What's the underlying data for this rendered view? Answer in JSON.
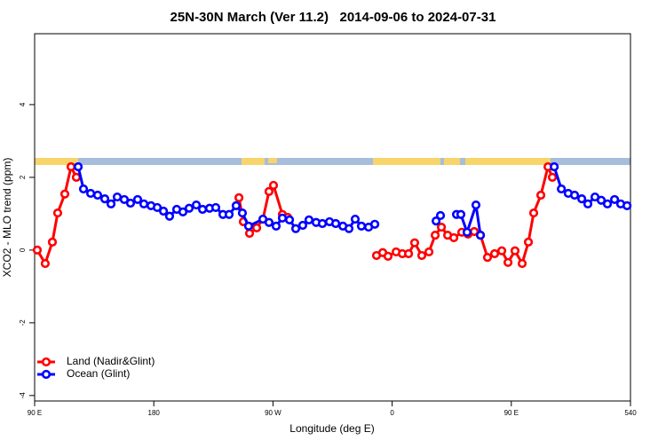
{
  "chart_data": {
    "type": "line",
    "title": "25N-30N March (Ver 11.2)   2014-09-06 to 2024-07-31",
    "xlabel": "Longitude (deg E)",
    "ylabel": "XCO2 - MLO trend (ppm)",
    "xlim": [
      90,
      540
    ],
    "xticks": [
      {
        "value": 90,
        "label": "90 E"
      },
      180,
      {
        "value": 270,
        "label": "90 W"
      },
      {
        "value": 360,
        "label": "0"
      },
      {
        "value": 450,
        "label": "90 E"
      },
      540
    ],
    "ylim": [
      -4.15,
      5.95
    ],
    "yticks": [
      -4,
      -2,
      0,
      2,
      4
    ],
    "legend": "bottom-left",
    "series": [
      {
        "name": "Land (Nadir&Glint)",
        "color": "#ff0000",
        "x": [
          92,
          98,
          103.4,
          107.4,
          112.8,
          117.5,
          121.5,
          null,
          244.3,
          247.6,
          252.3,
          257.7,
          262.4,
          267,
          270.4,
          277.1,
          281.1,
          null,
          348.2,
          352.9,
          356.9,
          363,
          367.7,
          372.4,
          377,
          382.4,
          387.8,
          392.5,
          397.2,
          401.9,
          406.6,
          412.6,
          417.3,
          422,
          426.7,
          432,
          437.4,
          442.8,
          447.5,
          452.8,
          458.2,
          462.9,
          466.9,
          472.3,
          477.7,
          481
        ],
        "values": [
          0,
          -0.37,
          0.22,
          1.02,
          1.54,
          2.29,
          2.0,
          null,
          1.44,
          0.78,
          0.46,
          0.61,
          0.85,
          1.61,
          1.78,
          0.98,
          0.9,
          null,
          -0.15,
          -0.07,
          -0.17,
          -0.05,
          -0.1,
          -0.1,
          0.2,
          -0.15,
          -0.05,
          0.41,
          0.63,
          0.41,
          0.34,
          0.49,
          0.44,
          0.51,
          0.41,
          -0.2,
          -0.1,
          -0.02,
          -0.34,
          -0.02,
          -0.37,
          0.22,
          1.02,
          1.51,
          2.29,
          2.0
        ]
      },
      {
        "name": "Ocean (Glint)",
        "color": "#0000ff",
        "x": [
          122.9,
          126.9,
          132.3,
          137.6,
          143,
          147.7,
          152.4,
          157.7,
          162.4,
          167.8,
          172.5,
          177.9,
          182.6,
          187.3,
          191.9,
          197.3,
          202,
          206.7,
          212.1,
          216.8,
          222.1,
          226.8,
          232.2,
          236.9,
          242.2,
          246.9,
          251.6,
          262.4,
          267,
          272.4,
          277.1,
          282.5,
          287.2,
          292.5,
          297.2,
          302.6,
          307.3,
          312.7,
          317.4,
          322.8,
          327.4,
          332.1,
          336.8,
          342.2,
          346.9,
          null,
          393.2,
          396.5,
          null,
          408.6,
          411.9,
          416.6,
          423.3,
          426.7,
          null,
          482.4,
          487.8,
          493,
          497.8,
          503.2,
          507.8,
          513.2,
          517.9,
          522.6,
          528,
          532.6,
          537.4
        ],
        "values": [
          2.29,
          1.68,
          1.56,
          1.51,
          1.41,
          1.27,
          1.46,
          1.39,
          1.29,
          1.39,
          1.27,
          1.22,
          1.17,
          1.07,
          0.93,
          1.12,
          1.05,
          1.15,
          1.24,
          1.12,
          1.15,
          1.17,
          0.98,
          0.98,
          1.22,
          1.02,
          0.66,
          0.85,
          0.76,
          0.66,
          0.88,
          0.83,
          0.59,
          0.68,
          0.83,
          0.76,
          0.73,
          0.78,
          0.73,
          0.66,
          0.59,
          0.85,
          0.66,
          0.63,
          0.71,
          null,
          0.8,
          0.95,
          null,
          0.98,
          0.98,
          0.49,
          1.24,
          0.41,
          null,
          2.29,
          1.68,
          1.56,
          1.51,
          1.41,
          1.27,
          1.46,
          1.37,
          1.27,
          1.39,
          1.27,
          1.22
        ]
      }
    ]
  }
}
